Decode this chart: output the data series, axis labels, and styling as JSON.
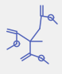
{
  "bg_color": "#f0f0f0",
  "line_color": "#5566bb",
  "line_width": 1.1,
  "figsize": [
    0.78,
    0.93
  ],
  "dpi": 100
}
